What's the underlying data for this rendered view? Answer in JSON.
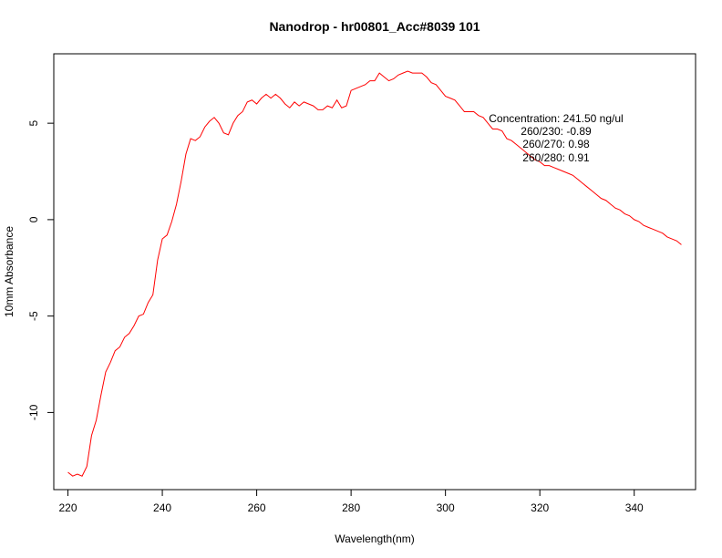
{
  "chart_data": {
    "type": "line",
    "title": "Nanodrop - hr00801_Acc#8039 101",
    "xlabel": "Wavelength(nm)",
    "ylabel": "10mm Absorbance",
    "xlim": [
      217,
      353
    ],
    "ylim": [
      -14,
      8.6
    ],
    "x_ticks": [
      220,
      240,
      260,
      280,
      300,
      320,
      340
    ],
    "y_ticks": [
      -10,
      -5,
      0,
      5
    ],
    "line_color": "#ff0000",
    "series": [
      {
        "x": [
          220,
          221,
          222,
          223,
          224,
          225,
          226,
          227,
          228,
          229,
          230,
          231,
          232,
          233,
          234,
          235,
          236,
          237,
          238,
          239,
          240,
          241,
          242,
          243,
          244,
          245,
          246,
          247,
          248,
          249,
          250,
          251,
          252,
          253,
          254,
          255,
          256,
          257,
          258,
          259,
          260,
          261,
          262,
          263,
          264,
          265,
          266,
          267,
          268,
          269,
          270,
          271,
          272,
          273,
          274,
          275,
          276,
          277,
          278,
          279,
          280,
          281,
          282,
          283,
          284,
          285,
          286,
          287,
          288,
          289,
          290,
          291,
          292,
          293,
          294,
          295,
          296,
          297,
          298,
          299,
          300,
          301,
          302,
          303,
          304,
          305,
          306,
          307,
          308,
          309,
          310,
          311,
          312,
          313,
          314,
          315,
          316,
          317,
          318,
          319,
          320,
          321,
          322,
          323,
          324,
          325,
          326,
          327,
          328,
          329,
          330,
          331,
          332,
          333,
          334,
          335,
          336,
          337,
          338,
          339,
          340,
          341,
          342,
          343,
          344,
          345,
          346,
          347,
          348,
          349,
          350
        ],
        "values": [
          -13.1,
          -13.3,
          -13.2,
          -13.3,
          -12.8,
          -11.2,
          -10.4,
          -9.1,
          -7.9,
          -7.4,
          -6.8,
          -6.6,
          -6.1,
          -5.9,
          -5.5,
          -5.0,
          -4.9,
          -4.3,
          -3.9,
          -2.1,
          -1.0,
          -0.8,
          -0.1,
          0.8,
          2.0,
          3.4,
          4.2,
          4.1,
          4.3,
          4.8,
          5.1,
          5.3,
          5.0,
          4.5,
          4.4,
          5.0,
          5.4,
          5.6,
          6.1,
          6.2,
          6.0,
          6.3,
          6.5,
          6.3,
          6.5,
          6.3,
          6.0,
          5.8,
          6.1,
          5.9,
          6.1,
          6.0,
          5.9,
          5.7,
          5.7,
          5.9,
          5.8,
          6.2,
          5.8,
          5.9,
          6.7,
          6.8,
          6.9,
          7.0,
          7.2,
          7.2,
          7.6,
          7.4,
          7.2,
          7.3,
          7.5,
          7.6,
          7.7,
          7.6,
          7.6,
          7.6,
          7.4,
          7.1,
          7.0,
          6.7,
          6.4,
          6.3,
          6.2,
          5.9,
          5.6,
          5.6,
          5.6,
          5.4,
          5.3,
          5.0,
          4.7,
          4.7,
          4.6,
          4.2,
          4.1,
          3.9,
          3.7,
          3.5,
          3.3,
          3.1,
          3.0,
          2.8,
          2.8,
          2.7,
          2.6,
          2.5,
          2.4,
          2.3,
          2.1,
          1.9,
          1.7,
          1.5,
          1.3,
          1.1,
          1.0,
          0.8,
          0.6,
          0.5,
          0.3,
          0.2,
          0.0,
          -0.1,
          -0.3,
          -0.4,
          -0.5,
          -0.6,
          -0.7,
          -0.9,
          -1.0,
          -1.1,
          -1.3
        ]
      }
    ],
    "annotations": [
      "Concentration: 241.50 ng/ul",
      "260/230: -0.89",
      "260/270: 0.98",
      "260/280: 0.91"
    ],
    "grid": false
  }
}
